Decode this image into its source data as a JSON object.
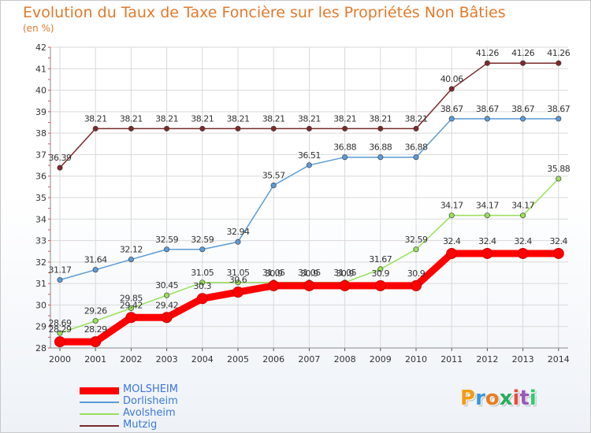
{
  "title": "Evolution du Taux de Taxe Foncière sur les Propriétés Non Bâties",
  "unit_label": "(en %)",
  "brand": "Proxiti",
  "chart_data": {
    "type": "line",
    "title": "Evolution du Taux de Taxe Foncière sur les Propriétés Non Bâties",
    "ylabel": "(en %)",
    "xlabel": "",
    "x": [
      "2000",
      "2001",
      "2002",
      "2003",
      "2004",
      "2005",
      "2006",
      "2007",
      "2008",
      "2009",
      "2010",
      "2011",
      "2012",
      "2013",
      "2014"
    ],
    "ylim": [
      28,
      42
    ],
    "yticks": [
      28,
      29,
      30,
      31,
      32,
      33,
      34,
      35,
      36,
      37,
      38,
      39,
      40,
      41,
      42
    ],
    "legend": "bottom-left",
    "series": [
      {
        "name": "MOLSHEIM",
        "color": "#ff0000",
        "values": [
          28.29,
          28.29,
          29.42,
          29.42,
          30.3,
          30.6,
          30.9,
          30.9,
          30.9,
          30.9,
          30.9,
          32.4,
          32.4,
          32.4,
          32.4
        ],
        "labels": [
          "28.29",
          "28.29",
          "29.42",
          "29.42",
          "30.3",
          "30.6",
          "30.9",
          "30.9",
          "30.9",
          "30.9",
          "30.9",
          "32.4",
          "32.4",
          "32.4",
          "32.4"
        ]
      },
      {
        "name": "Dorlisheim",
        "color": "#5b9bd5",
        "values": [
          31.17,
          31.64,
          32.12,
          32.59,
          32.59,
          32.94,
          35.57,
          36.51,
          36.88,
          36.88,
          36.88,
          38.67,
          38.67,
          38.67,
          38.67
        ],
        "labels": [
          "31.17",
          "31.64",
          "32.12",
          "32.59",
          "32.59",
          "32.94",
          "35.57",
          "36.51",
          "36.88",
          "36.88",
          "36.88",
          "38.67",
          "38.67",
          "38.67",
          "38.67"
        ]
      },
      {
        "name": "Avolsheim",
        "color": "#99e05a",
        "values": [
          28.69,
          29.26,
          29.85,
          30.45,
          31.05,
          31.05,
          31.05,
          31.05,
          31.05,
          31.67,
          32.59,
          34.17,
          34.17,
          34.17,
          35.88
        ],
        "labels": [
          "28.69",
          "29.26",
          "29.85",
          "30.45",
          "31.05",
          "31.05",
          "31.05",
          "31.05",
          "31.05",
          "31.67",
          "32.59",
          "34.17",
          "34.17",
          "34.17",
          "35.88"
        ]
      },
      {
        "name": "Mutzig",
        "color": "#7a2a2a",
        "values": [
          36.39,
          38.21,
          38.21,
          38.21,
          38.21,
          38.21,
          38.21,
          38.21,
          38.21,
          38.21,
          38.21,
          40.06,
          41.26,
          41.26,
          41.26
        ],
        "labels": [
          "36.39",
          "38.21",
          "38.21",
          "38.21",
          "38.21",
          "38.21",
          "38.21",
          "38.21",
          "38.21",
          "38.21",
          "38.21",
          "40.06",
          "41.26",
          "41.26",
          "41.26"
        ]
      }
    ]
  }
}
